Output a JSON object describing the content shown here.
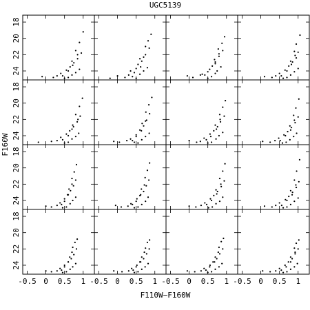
{
  "title": "UGC5139",
  "x_label": "F110W−F160W",
  "y_label": "F160W",
  "chart_data": [
    {
      "type": "scatter",
      "color": "#000000",
      "xlim": [
        -0.62,
        1.3
      ],
      "ylim": [
        25.1,
        17.15
      ],
      "xticks": [
        -0.5,
        0,
        0.5,
        1
      ],
      "yticks": [
        18,
        20,
        22,
        24
      ],
      "x": [
        0.6,
        0.7,
        0.8,
        0.5,
        0.9,
        0.3,
        0.65,
        0.75,
        0.85,
        0.95,
        0.4,
        0.55,
        0.2,
        0.7,
        0.8,
        0.9,
        1.0,
        -0.1,
        0.6,
        0.85,
        0.45,
        0.72
      ],
      "y": [
        24.8,
        24.5,
        24.2,
        24.9,
        23.8,
        24.6,
        23.5,
        23.0,
        22.5,
        21.8,
        24.3,
        23.9,
        24.8,
        22.8,
        21.5,
        20.5,
        19.2,
        24.7,
        24.0,
        22.0,
        24.6,
        23.3
      ]
    },
    {
      "type": "scatter",
      "color": "#000000",
      "xlim": [
        -0.62,
        1.3
      ],
      "ylim": [
        25.1,
        17.15
      ],
      "xticks": [
        -0.5,
        0,
        0.5,
        1
      ],
      "yticks": [
        18,
        20,
        22,
        24
      ],
      "x": [
        0.5,
        0.6,
        0.7,
        0.4,
        0.8,
        0.2,
        0.55,
        0.65,
        0.75,
        0.85,
        0.3,
        0.5,
        -0.2,
        0.6,
        0.75,
        0.82,
        0.9,
        0.0,
        0.45,
        0.7,
        0.35,
        0.62
      ],
      "y": [
        24.9,
        24.4,
        24.0,
        24.7,
        23.6,
        24.8,
        23.2,
        22.8,
        22.0,
        21.2,
        24.5,
        23.7,
        24.9,
        22.5,
        21.0,
        20.3,
        19.5,
        24.6,
        24.2,
        22.3,
        24.0,
        23.5
      ]
    },
    {
      "type": "scatter",
      "color": "#000000",
      "xlim": [
        -0.62,
        1.3
      ],
      "ylim": [
        25.1,
        17.15
      ],
      "xticks": [
        -0.5,
        0,
        0.5,
        1
      ],
      "yticks": [
        18,
        20,
        22,
        24
      ],
      "x": [
        0.6,
        0.7,
        0.75,
        0.5,
        0.85,
        0.3,
        0.62,
        0.7,
        0.8,
        0.9,
        0.35,
        0.55,
        0.1,
        0.68,
        0.78,
        0.88,
        0.95,
        -0.05,
        0.5,
        0.8,
        0.42,
        0.7
      ],
      "y": [
        24.7,
        24.3,
        24.0,
        24.9,
        23.5,
        24.5,
        23.4,
        22.9,
        22.2,
        21.5,
        24.4,
        23.8,
        24.8,
        22.6,
        21.3,
        20.6,
        19.8,
        24.6,
        24.1,
        21.9,
        24.5,
        23.1
      ]
    },
    {
      "type": "scatter",
      "color": "#000000",
      "xlim": [
        -0.62,
        1.3
      ],
      "ylim": [
        25.1,
        17.15
      ],
      "xticks": [
        -0.5,
        0,
        0.5,
        1
      ],
      "yticks": [
        18,
        20,
        22,
        24
      ],
      "x": [
        0.7,
        0.8,
        0.9,
        0.6,
        1.0,
        0.4,
        0.75,
        0.85,
        0.95,
        1.0,
        0.5,
        0.65,
        0.3,
        0.8,
        0.9,
        0.95,
        1.05,
        0.1,
        0.7,
        0.92,
        0.55,
        0.82
      ],
      "y": [
        24.8,
        24.5,
        24.1,
        24.9,
        23.7,
        24.6,
        23.4,
        22.9,
        22.4,
        21.7,
        24.3,
        23.9,
        24.8,
        22.8,
        21.6,
        20.7,
        19.6,
        24.7,
        24.0,
        22.1,
        24.6,
        23.2
      ]
    },
    {
      "type": "scatter",
      "color": "#000000",
      "xlim": [
        -0.62,
        1.3
      ],
      "ylim": [
        25.1,
        17.15
      ],
      "xticks": [
        -0.5,
        0,
        0.5,
        1
      ],
      "yticks": [
        18,
        20,
        22,
        24
      ],
      "x": [
        0.6,
        0.7,
        0.8,
        0.5,
        0.88,
        0.3,
        0.64,
        0.74,
        0.84,
        0.92,
        0.4,
        0.55,
        0.15,
        0.72,
        0.8,
        0.9,
        0.98,
        -0.2,
        0.6,
        0.86,
        0.45,
        0.7
      ],
      "y": [
        24.8,
        24.4,
        24.1,
        24.9,
        23.7,
        24.6,
        23.4,
        22.9,
        22.3,
        21.6,
        24.2,
        23.8,
        24.7,
        22.7,
        21.4,
        20.4,
        19.4,
        24.8,
        24.0,
        22.0,
        24.5,
        23.2
      ]
    },
    {
      "type": "scatter",
      "color": "#000000",
      "xlim": [
        -0.62,
        1.3
      ],
      "ylim": [
        25.1,
        17.15
      ],
      "xticks": [
        -0.5,
        0,
        0.5,
        1
      ],
      "yticks": [
        18,
        20,
        22,
        24
      ],
      "x": [
        0.55,
        0.65,
        0.75,
        0.45,
        0.85,
        0.25,
        0.6,
        0.7,
        0.78,
        0.86,
        0.35,
        0.5,
        0.05,
        0.66,
        0.76,
        0.84,
        0.92,
        -0.1,
        0.5,
        0.75,
        0.4,
        0.64
      ],
      "y": [
        24.9,
        24.5,
        24.1,
        24.8,
        23.7,
        24.6,
        23.3,
        22.8,
        22.1,
        21.3,
        24.4,
        23.9,
        24.8,
        22.5,
        21.1,
        20.2,
        19.3,
        24.7,
        24.1,
        22.2,
        24.6,
        23.4
      ]
    },
    {
      "type": "scatter",
      "color": "#000000",
      "xlim": [
        -0.62,
        1.3
      ],
      "ylim": [
        25.1,
        17.15
      ],
      "xticks": [
        -0.5,
        0,
        0.5,
        1
      ],
      "yticks": [
        18,
        20,
        22,
        24
      ],
      "x": [
        0.6,
        0.72,
        0.8,
        0.5,
        0.9,
        0.3,
        0.66,
        0.76,
        0.84,
        0.94,
        0.4,
        0.56,
        0.2,
        0.7,
        0.82,
        0.9,
        0.97,
        0.0,
        0.58,
        0.83,
        0.46,
        0.73
      ],
      "y": [
        24.8,
        24.4,
        24.0,
        24.9,
        23.6,
        24.7,
        23.4,
        22.9,
        22.3,
        21.6,
        24.3,
        23.8,
        24.8,
        22.7,
        21.4,
        20.5,
        19.7,
        24.6,
        24.1,
        22.0,
        24.5,
        23.2
      ]
    },
    {
      "type": "scatter",
      "color": "#000000",
      "xlim": [
        -0.62,
        1.3
      ],
      "ylim": [
        25.1,
        17.15
      ],
      "xticks": [
        -0.5,
        0,
        0.5,
        1
      ],
      "yticks": [
        18,
        20,
        22,
        24
      ],
      "x": [
        0.68,
        0.78,
        0.88,
        0.58,
        0.96,
        0.38,
        0.72,
        0.82,
        0.92,
        1.0,
        0.48,
        0.62,
        0.25,
        0.78,
        0.88,
        0.94,
        1.02,
        0.05,
        0.66,
        0.9,
        0.52,
        0.8
      ],
      "y": [
        24.8,
        24.5,
        24.1,
        24.9,
        23.7,
        24.6,
        23.5,
        23.0,
        22.4,
        21.7,
        24.3,
        23.9,
        24.8,
        22.8,
        21.5,
        20.6,
        19.5,
        24.7,
        24.0,
        22.1,
        24.6,
        23.3
      ]
    },
    {
      "type": "scatter",
      "color": "#000000",
      "xlim": [
        -0.62,
        1.3
      ],
      "ylim": [
        25.1,
        17.15
      ],
      "xticks": [
        -0.5,
        0,
        0.5,
        1
      ],
      "yticks": [
        18,
        20,
        22,
        24
      ],
      "x": [
        0.55,
        0.65,
        0.72,
        0.45,
        0.8,
        0.3,
        0.58,
        0.66,
        0.74,
        0.8,
        0.38,
        0.5,
        0.15,
        0.62,
        0.7,
        0.76,
        0.82,
        0.0,
        0.5,
        0.7,
        0.42,
        0.6
      ],
      "y": [
        24.8,
        24.4,
        24.0,
        24.9,
        23.6,
        24.6,
        23.3,
        22.8,
        22.2,
        21.5,
        24.3,
        23.8,
        24.8,
        22.6,
        21.3,
        20.5,
        19.6,
        24.7,
        24.1,
        22.0,
        24.5,
        23.3
      ]
    },
    {
      "type": "scatter",
      "color": "#000000",
      "xlim": [
        -0.62,
        1.3
      ],
      "ylim": [
        25.1,
        17.15
      ],
      "xticks": [
        -0.5,
        0,
        0.5,
        1
      ],
      "yticks": [
        18,
        20,
        22,
        24
      ],
      "x": [
        0.55,
        0.65,
        0.75,
        0.45,
        0.82,
        0.28,
        0.6,
        0.7,
        0.77,
        0.84,
        0.36,
        0.52,
        0.1,
        0.64,
        0.74,
        0.8,
        0.86,
        -0.05,
        0.5,
        0.72,
        0.4,
        0.62
      ],
      "y": [
        24.8,
        24.5,
        24.1,
        24.9,
        23.6,
        24.7,
        23.4,
        22.9,
        22.2,
        21.5,
        24.4,
        23.8,
        24.8,
        22.6,
        21.2,
        20.3,
        19.4,
        24.6,
        24.1,
        22.1,
        24.5,
        23.3
      ]
    },
    {
      "type": "scatter",
      "color": "#000000",
      "xlim": [
        -0.62,
        1.3
      ],
      "ylim": [
        25.1,
        17.15
      ],
      "xticks": [
        -0.5,
        0,
        0.5,
        1
      ],
      "yticks": [
        18,
        20,
        22,
        24
      ],
      "x": [
        0.62,
        0.72,
        0.82,
        0.52,
        0.9,
        0.32,
        0.66,
        0.76,
        0.86,
        0.94,
        0.42,
        0.57,
        0.18,
        0.72,
        0.82,
        0.9,
        0.96,
        0.0,
        0.6,
        0.85,
        0.47,
        0.74
      ],
      "y": [
        24.8,
        24.4,
        24.1,
        24.9,
        23.6,
        24.6,
        23.4,
        22.9,
        22.3,
        21.6,
        24.3,
        23.8,
        24.8,
        22.7,
        21.3,
        20.4,
        19.5,
        24.7,
        24.0,
        22.0,
        24.5,
        23.2
      ]
    },
    {
      "type": "scatter",
      "color": "#000000",
      "xlim": [
        -0.62,
        1.3
      ],
      "ylim": [
        25.1,
        17.15
      ],
      "xticks": [
        -0.5,
        0,
        0.5,
        1
      ],
      "yticks": [
        18,
        20,
        22,
        24
      ],
      "x": [
        0.7,
        0.8,
        0.9,
        0.6,
        1.0,
        0.4,
        0.75,
        0.85,
        0.95,
        1.02,
        0.5,
        0.66,
        0.3,
        0.8,
        0.9,
        0.96,
        1.04,
        0.1,
        0.7,
        0.94,
        0.56,
        0.84
      ],
      "y": [
        24.8,
        24.5,
        24.1,
        24.9,
        23.7,
        24.6,
        23.5,
        23.0,
        22.4,
        21.7,
        24.3,
        23.9,
        24.8,
        22.8,
        21.5,
        20.4,
        19.0,
        24.7,
        24.0,
        22.1,
        24.6,
        23.3
      ]
    },
    {
      "type": "scatter",
      "color": "#000000",
      "xlim": [
        -0.62,
        1.3
      ],
      "ylim": [
        25.1,
        17.15
      ],
      "xticks": [
        -0.5,
        0,
        0.5,
        1
      ],
      "yticks": [
        18,
        20,
        22,
        24
      ],
      "x": [
        0.55,
        0.65,
        0.72,
        0.45,
        0.8,
        0.3,
        0.6,
        0.68,
        0.75,
        0.82,
        0.38,
        0.5,
        0.15,
        0.64,
        0.72,
        0.78,
        0.84,
        0.0,
        0.5,
        0.7,
        0.42,
        0.6
      ],
      "y": [
        24.8,
        24.5,
        24.2,
        24.9,
        23.8,
        24.7,
        23.6,
        23.2,
        22.7,
        22.0,
        24.4,
        24.0,
        24.8,
        23.0,
        21.8,
        21.2,
        20.8,
        24.7,
        24.2,
        22.4,
        24.6,
        23.6
      ]
    },
    {
      "type": "scatter",
      "color": "#000000",
      "xlim": [
        -0.62,
        1.3
      ],
      "ylim": [
        25.1,
        17.15
      ],
      "xticks": [
        -0.5,
        0,
        0.5,
        1
      ],
      "yticks": [
        18,
        20,
        22,
        24
      ],
      "x": [
        0.55,
        0.65,
        0.74,
        0.45,
        0.82,
        0.3,
        0.6,
        0.7,
        0.78,
        0.85,
        0.38,
        0.52,
        0.12,
        0.65,
        0.75,
        0.8,
        0.86,
        -0.1,
        0.5,
        0.72,
        0.42,
        0.62
      ],
      "y": [
        24.8,
        24.5,
        24.2,
        24.9,
        23.8,
        24.7,
        23.6,
        23.2,
        22.6,
        22.0,
        24.4,
        24.0,
        24.8,
        23.0,
        21.9,
        21.2,
        20.9,
        24.7,
        24.2,
        22.4,
        24.6,
        23.6
      ]
    },
    {
      "type": "scatter",
      "color": "#000000",
      "xlim": [
        -0.62,
        1.3
      ],
      "ylim": [
        25.1,
        17.15
      ],
      "xticks": [
        -0.5,
        0,
        0.5,
        1
      ],
      "yticks": [
        18,
        20,
        22,
        24
      ],
      "x": [
        0.6,
        0.7,
        0.8,
        0.5,
        0.88,
        0.32,
        0.64,
        0.74,
        0.82,
        0.9,
        0.4,
        0.56,
        0.15,
        0.7,
        0.8,
        0.86,
        0.92,
        -0.05,
        0.55,
        0.78,
        0.45,
        0.68
      ],
      "y": [
        24.8,
        24.5,
        24.2,
        24.9,
        23.8,
        24.7,
        23.6,
        23.2,
        22.6,
        22.0,
        24.4,
        24.0,
        24.8,
        23.0,
        21.8,
        21.1,
        20.7,
        24.7,
        24.2,
        22.4,
        24.6,
        23.6
      ]
    },
    {
      "type": "scatter",
      "color": "#000000",
      "xlim": [
        -0.62,
        1.3
      ],
      "ylim": [
        25.1,
        17.15
      ],
      "xticks": [
        -0.5,
        0,
        0.5,
        1
      ],
      "yticks": [
        18,
        20,
        22,
        24
      ],
      "x": [
        0.7,
        0.8,
        0.9,
        0.6,
        0.98,
        0.4,
        0.74,
        0.84,
        0.92,
        1.0,
        0.5,
        0.65,
        0.25,
        0.8,
        0.9,
        0.95,
        1.02,
        0.05,
        0.68,
        0.92,
        0.55,
        0.8
      ],
      "y": [
        24.8,
        24.5,
        24.2,
        24.9,
        23.8,
        24.7,
        23.6,
        23.2,
        22.6,
        22.0,
        24.4,
        24.0,
        24.8,
        23.0,
        21.9,
        21.3,
        20.9,
        24.7,
        24.2,
        22.4,
        24.6,
        23.6
      ]
    }
  ]
}
